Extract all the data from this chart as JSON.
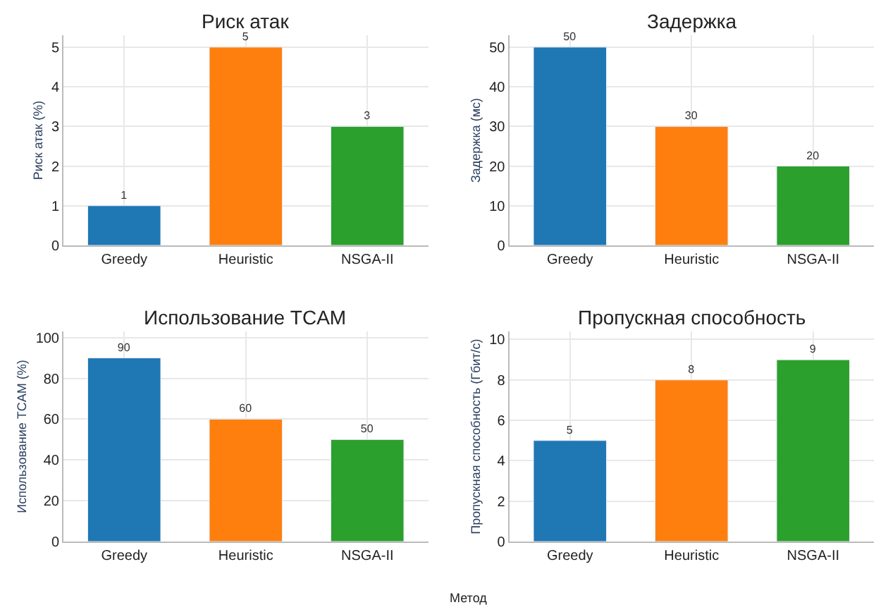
{
  "chart_data": [
    {
      "type": "bar",
      "title": "Риск атак",
      "ylabel": "Риск атак (%)",
      "categories": [
        "Greedy",
        "Heuristic",
        "NSGA-II"
      ],
      "values": [
        1,
        5,
        3
      ],
      "colors": [
        "#1f77b4",
        "#ff7f0e",
        "#2ca02c"
      ],
      "ylim": [
        0,
        5.3
      ],
      "yticks": [
        0,
        1,
        2,
        3,
        4,
        5
      ],
      "grid": true,
      "data_labels": true
    },
    {
      "type": "bar",
      "title": "Задержка",
      "ylabel": "Задержка (мс)",
      "categories": [
        "Greedy",
        "Heuristic",
        "NSGA-II"
      ],
      "values": [
        50,
        30,
        20
      ],
      "colors": [
        "#1f77b4",
        "#ff7f0e",
        "#2ca02c"
      ],
      "ylim": [
        0,
        53
      ],
      "yticks": [
        0,
        10,
        20,
        30,
        40,
        50
      ],
      "grid": true,
      "data_labels": true
    },
    {
      "type": "bar",
      "title": "Использование TCAM",
      "ylabel": "Использование TCAM (%)",
      "categories": [
        "Greedy",
        "Heuristic",
        "NSGA-II"
      ],
      "values": [
        90,
        60,
        50
      ],
      "colors": [
        "#1f77b4",
        "#ff7f0e",
        "#2ca02c"
      ],
      "ylim": [
        0,
        103
      ],
      "yticks": [
        0,
        20,
        40,
        60,
        80,
        100
      ],
      "grid": true,
      "data_labels": true
    },
    {
      "type": "bar",
      "title": "Пропускная способность",
      "ylabel": "Пропускная способность (Гбит/с)",
      "categories": [
        "Greedy",
        "Heuristic",
        "NSGA-II"
      ],
      "values": [
        5,
        8,
        9
      ],
      "colors": [
        "#1f77b4",
        "#ff7f0e",
        "#2ca02c"
      ],
      "ylim": [
        0,
        10.4
      ],
      "yticks": [
        0,
        2,
        4,
        6,
        8,
        10
      ],
      "grid": true,
      "data_labels": true,
      "annotations": [
        "Метод"
      ]
    }
  ]
}
